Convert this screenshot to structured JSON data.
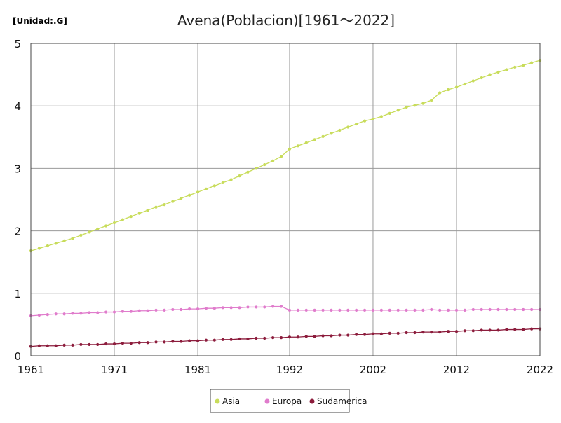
{
  "chart_data": {
    "type": "line",
    "title": "Avena(Poblacion)[1961～2022]",
    "unit_label": "[Unidad:.G]",
    "xlabel": "",
    "ylabel": "",
    "xlim": [
      1961,
      2022
    ],
    "ylim": [
      0,
      5
    ],
    "x_ticks": [
      "1961",
      "1971",
      "1981",
      "1992",
      "2002",
      "2012",
      "2022"
    ],
    "y_ticks": [
      "0",
      "1",
      "2",
      "3",
      "4",
      "5"
    ],
    "grid": true,
    "legend_position": "bottom-center",
    "x": [
      1961,
      1962,
      1963,
      1964,
      1965,
      1966,
      1967,
      1968,
      1969,
      1970,
      1971,
      1972,
      1973,
      1974,
      1975,
      1976,
      1977,
      1978,
      1979,
      1980,
      1981,
      1982,
      1983,
      1984,
      1985,
      1986,
      1987,
      1988,
      1989,
      1990,
      1991,
      1992,
      1993,
      1994,
      1995,
      1996,
      1997,
      1998,
      1999,
      2000,
      2001,
      2002,
      2003,
      2004,
      2005,
      2006,
      2007,
      2008,
      2009,
      2010,
      2011,
      2012,
      2013,
      2014,
      2015,
      2016,
      2017,
      2018,
      2019,
      2020,
      2021,
      2022
    ],
    "series": [
      {
        "name": "Asia",
        "color": "#c8dc5a",
        "values": [
          1.68,
          1.72,
          1.76,
          1.8,
          1.84,
          1.88,
          1.93,
          1.98,
          2.03,
          2.08,
          2.13,
          2.18,
          2.23,
          2.28,
          2.33,
          2.38,
          2.42,
          2.47,
          2.52,
          2.57,
          2.62,
          2.67,
          2.72,
          2.77,
          2.82,
          2.88,
          2.94,
          3.0,
          3.06,
          3.12,
          3.19,
          3.31,
          3.36,
          3.41,
          3.46,
          3.51,
          3.56,
          3.61,
          3.66,
          3.71,
          3.76,
          3.79,
          3.83,
          3.88,
          3.93,
          3.98,
          4.01,
          4.04,
          4.09,
          4.21,
          4.26,
          4.3,
          4.35,
          4.4,
          4.45,
          4.5,
          4.54,
          4.58,
          4.62,
          4.65,
          4.69,
          4.73
        ]
      },
      {
        "name": "Europa",
        "color": "#e07ccc",
        "values": [
          0.64,
          0.65,
          0.66,
          0.67,
          0.67,
          0.68,
          0.68,
          0.69,
          0.69,
          0.7,
          0.7,
          0.71,
          0.71,
          0.72,
          0.72,
          0.73,
          0.73,
          0.74,
          0.74,
          0.75,
          0.75,
          0.76,
          0.76,
          0.77,
          0.77,
          0.77,
          0.78,
          0.78,
          0.78,
          0.79,
          0.79,
          0.73,
          0.73,
          0.73,
          0.73,
          0.73,
          0.73,
          0.73,
          0.73,
          0.73,
          0.73,
          0.73,
          0.73,
          0.73,
          0.73,
          0.73,
          0.73,
          0.73,
          0.74,
          0.73,
          0.73,
          0.73,
          0.73,
          0.74,
          0.74,
          0.74,
          0.74,
          0.74,
          0.74,
          0.74,
          0.74,
          0.74
        ]
      },
      {
        "name": "Sudamerica",
        "color": "#8c1c3c",
        "values": [
          0.15,
          0.16,
          0.16,
          0.16,
          0.17,
          0.17,
          0.18,
          0.18,
          0.18,
          0.19,
          0.19,
          0.2,
          0.2,
          0.21,
          0.21,
          0.22,
          0.22,
          0.23,
          0.23,
          0.24,
          0.24,
          0.25,
          0.25,
          0.26,
          0.26,
          0.27,
          0.27,
          0.28,
          0.28,
          0.29,
          0.29,
          0.3,
          0.3,
          0.31,
          0.31,
          0.32,
          0.32,
          0.33,
          0.33,
          0.34,
          0.34,
          0.35,
          0.35,
          0.36,
          0.36,
          0.37,
          0.37,
          0.38,
          0.38,
          0.38,
          0.39,
          0.39,
          0.4,
          0.4,
          0.41,
          0.41,
          0.41,
          0.42,
          0.42,
          0.42,
          0.43,
          0.43
        ]
      }
    ]
  }
}
